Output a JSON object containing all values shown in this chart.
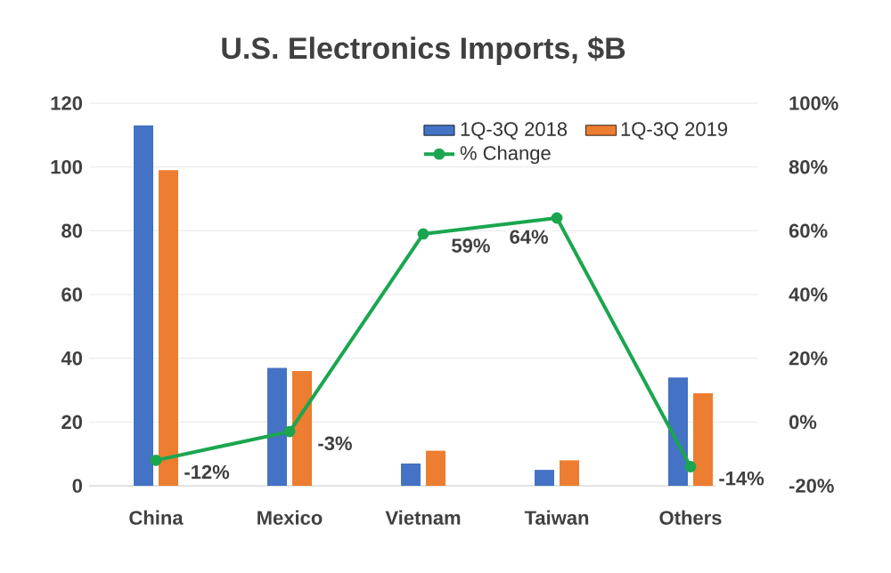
{
  "chart_data": {
    "type": "bar",
    "title": "U.S. Electronics Imports, $B",
    "categories": [
      "China",
      "Mexico",
      "Vietnam",
      "Taiwan",
      "Others"
    ],
    "series": [
      {
        "name": "1Q-3Q 2018",
        "color": "#4472c4",
        "values": [
          113,
          37,
          7,
          5,
          34
        ]
      },
      {
        "name": "1Q-3Q 2019",
        "color": "#ed7d31",
        "values": [
          99,
          36,
          11,
          8,
          29
        ]
      },
      {
        "name": "% Change",
        "type": "line",
        "axis": "y2",
        "color": "#1aa64f",
        "marker": "circle",
        "values": [
          -12,
          -3,
          59,
          64,
          -14
        ],
        "value_labels": [
          "-12%",
          "-3%",
          "59%",
          "64%",
          "-14%"
        ]
      }
    ],
    "ylim": [
      0,
      120
    ],
    "yticks": [
      0,
      20,
      40,
      60,
      80,
      100,
      120
    ],
    "y2lim": [
      -20,
      100
    ],
    "y2ticks": [
      {
        "value": -20,
        "label": "-20%"
      },
      {
        "value": 0,
        "label": "0%"
      },
      {
        "value": 20,
        "label": "20%"
      },
      {
        "value": 40,
        "label": "40%"
      },
      {
        "value": 60,
        "label": "60%"
      },
      {
        "value": 80,
        "label": "80%"
      },
      {
        "value": 100,
        "label": "100%"
      }
    ],
    "grid": "y",
    "legend": "top right"
  }
}
